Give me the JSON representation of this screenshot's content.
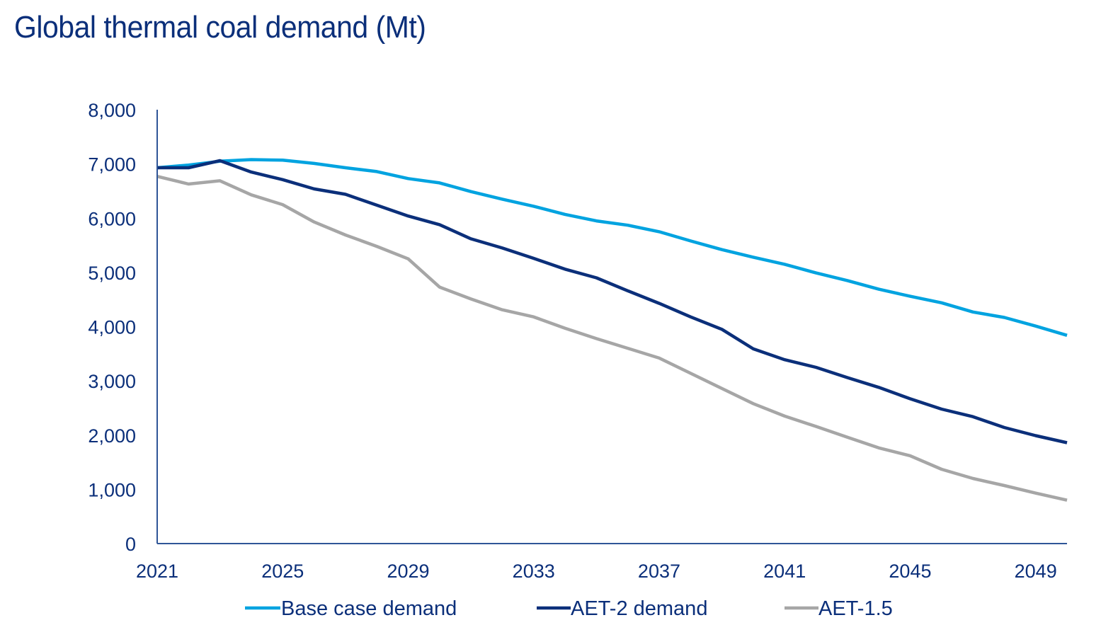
{
  "chart_data": {
    "type": "line",
    "title": "Global thermal coal demand (Mt)",
    "xlabel": "",
    "ylabel": "",
    "x": [
      2021,
      2022,
      2023,
      2024,
      2025,
      2026,
      2027,
      2028,
      2029,
      2030,
      2031,
      2032,
      2033,
      2034,
      2035,
      2036,
      2037,
      2038,
      2039,
      2040,
      2041,
      2042,
      2043,
      2044,
      2045,
      2046,
      2047,
      2048,
      2049,
      2050
    ],
    "xlim": [
      2021,
      2050
    ],
    "ylim": [
      0,
      8000
    ],
    "x_ticks": [
      2021,
      2025,
      2029,
      2033,
      2037,
      2041,
      2045,
      2049
    ],
    "x_tick_labels": [
      "2021",
      "2025",
      "2029",
      "2033",
      "2037",
      "2041",
      "2045",
      "2049"
    ],
    "y_ticks": [
      0,
      1000,
      2000,
      3000,
      4000,
      5000,
      6000,
      7000,
      8000
    ],
    "y_tick_labels": [
      "0",
      "1,000",
      "2,000",
      "3,000",
      "4,000",
      "5,000",
      "6,000",
      "7,000",
      "8,000"
    ],
    "grid": false,
    "legend_position": "bottom",
    "series": [
      {
        "name": "Base case demand",
        "color": "#00a3e0",
        "values": [
          6930,
          6980,
          7050,
          7080,
          7070,
          7010,
          6930,
          6860,
          6730,
          6650,
          6490,
          6350,
          6220,
          6070,
          5950,
          5870,
          5750,
          5580,
          5420,
          5280,
          5150,
          4990,
          4850,
          4690,
          4560,
          4440,
          4270,
          4170,
          4010,
          3840
        ]
      },
      {
        "name": "AET-2 demand",
        "color": "#0b2f7a",
        "values": [
          6930,
          6930,
          7060,
          6850,
          6710,
          6540,
          6440,
          6240,
          6040,
          5880,
          5620,
          5450,
          5260,
          5060,
          4900,
          4660,
          4430,
          4180,
          3950,
          3590,
          3390,
          3250,
          3060,
          2880,
          2670,
          2480,
          2340,
          2140,
          1990,
          1860
        ]
      },
      {
        "name": "AET-1.5",
        "color": "#a6a6a6",
        "values": [
          6770,
          6630,
          6690,
          6430,
          6250,
          5930,
          5690,
          5480,
          5250,
          4730,
          4510,
          4310,
          4180,
          3970,
          3780,
          3600,
          3420,
          3140,
          2860,
          2580,
          2350,
          2160,
          1960,
          1765,
          1620,
          1370,
          1200,
          1070,
          930,
          800
        ]
      }
    ]
  },
  "colors": {
    "axis": "#2f5597",
    "text": "#0b2f7a"
  }
}
